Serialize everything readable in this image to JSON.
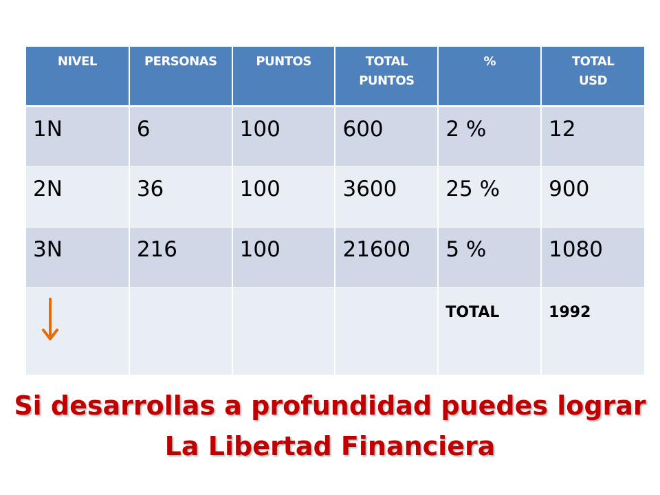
{
  "table": {
    "headers": [
      [
        "NIVEL"
      ],
      [
        "PERSONAS"
      ],
      [
        "PUNTOS"
      ],
      [
        "TOTAL",
        "PUNTOS"
      ],
      [
        "%"
      ],
      [
        "TOTAL",
        "USD"
      ]
    ],
    "rows": [
      [
        "1N",
        "6",
        "100",
        "600",
        "2 %",
        "12"
      ],
      [
        "2N",
        "36",
        "100",
        "3600",
        "25 %",
        "900"
      ],
      [
        "3N",
        "216",
        "100",
        "21600",
        "5 %",
        "1080"
      ]
    ],
    "total_label": "TOTAL",
    "total_value": "1992"
  },
  "arrow_icon": "down-arrow-icon",
  "colors": {
    "header_bg": "#4f81bd",
    "row_dark": "#d0d8e8",
    "row_light": "#e9edf4",
    "arrow": "#e46c0a",
    "headline": "#c00000"
  },
  "headline": {
    "line1": "Si desarrollas a profundidad puedes lograr",
    "line2": "La Libertad Financiera"
  }
}
